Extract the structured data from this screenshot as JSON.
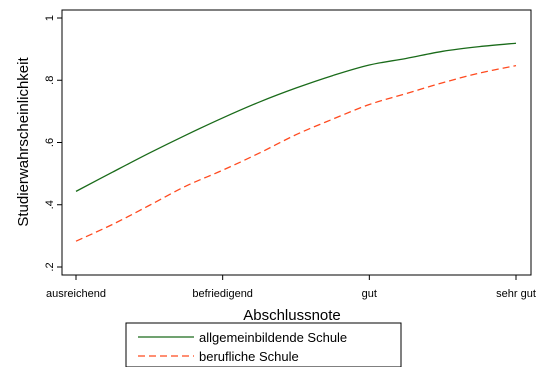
{
  "chart_data": {
    "type": "line",
    "title": "",
    "xlabel": "Abschlussnote",
    "ylabel": "Studierwahrscheinlichkeit",
    "categories": [
      "ausreichend",
      "befriedigend",
      "gut",
      "sehr gut"
    ],
    "xlim": [
      0,
      3
    ],
    "ylim": [
      0.2,
      1.0
    ],
    "y_ticks": [
      0.2,
      0.4,
      0.6,
      0.8,
      1.0
    ],
    "y_tick_labels": [
      ".2",
      ".4",
      ".6",
      ".8",
      "1"
    ],
    "grid": false,
    "legend_position": "bottom",
    "series": [
      {
        "name": "allgemeinbildende Schule",
        "color": "#1a6b1a",
        "dash": "solid",
        "x": [
          0,
          0.25,
          0.5,
          0.75,
          1.0,
          1.25,
          1.5,
          1.75,
          2.0,
          2.25,
          2.5,
          2.75,
          3.0
        ],
        "y": [
          0.443,
          0.505,
          0.566,
          0.624,
          0.679,
          0.73,
          0.775,
          0.815,
          0.849,
          0.87,
          0.893,
          0.908,
          0.919
        ]
      },
      {
        "name": "berufliche Schule",
        "color": "#ff4a1f",
        "dash": "dashed",
        "x": [
          0,
          0.25,
          0.5,
          0.75,
          1.0,
          1.25,
          1.5,
          1.75,
          2.0,
          2.25,
          2.5,
          2.75,
          3.0
        ],
        "y": [
          0.283,
          0.337,
          0.398,
          0.46,
          0.511,
          0.566,
          0.625,
          0.675,
          0.722,
          0.757,
          0.792,
          0.823,
          0.847
        ]
      }
    ]
  }
}
